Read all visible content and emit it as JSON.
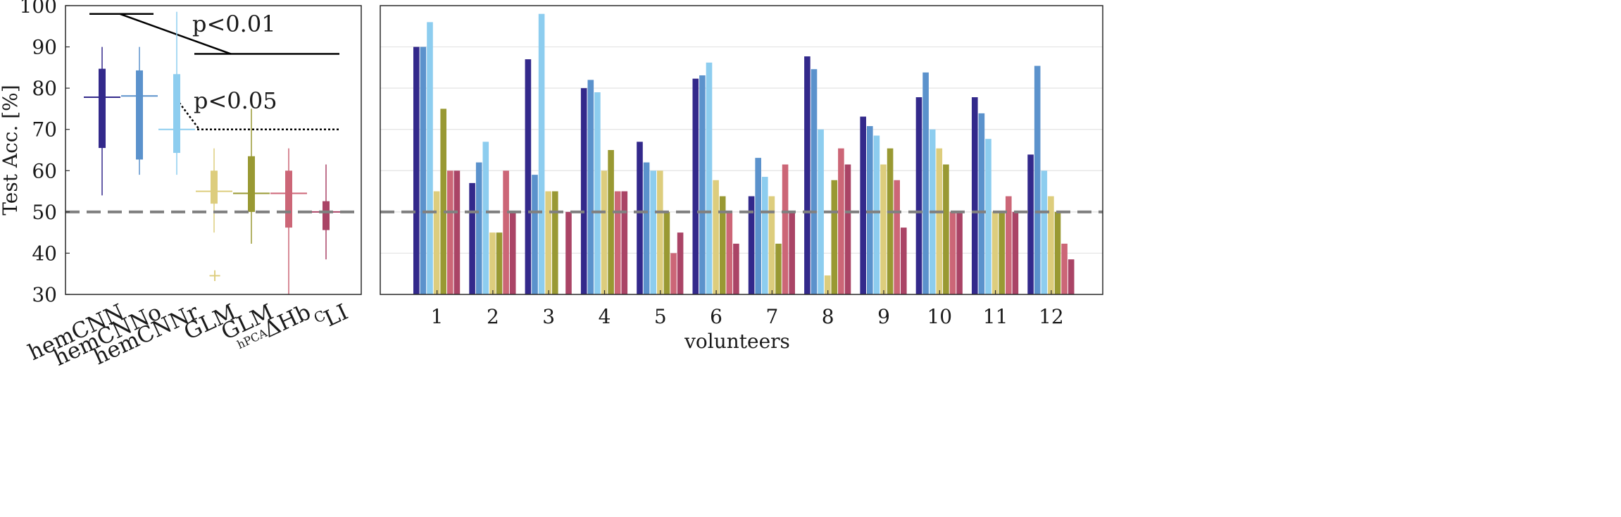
{
  "colors": {
    "hemCNN": "#33298b",
    "hemCNNo": "#5b92cc",
    "hemCNNr": "#8dcdef",
    "GLM": "#ddcd7d",
    "GLM_hPCA": "#999933",
    "dHbC": "#cc6677",
    "LI": "#aa4466"
  },
  "chart_data": [
    {
      "type": "box",
      "ylabel": "Test Acc. [%]",
      "ylim": [
        30,
        100
      ],
      "yticks": [
        30,
        40,
        50,
        60,
        70,
        80,
        90,
        100
      ],
      "chance_level": 50,
      "categories": [
        {
          "label": "hemCNN",
          "sub": ""
        },
        {
          "label": "hemCNNo",
          "sub": ""
        },
        {
          "label": "hemCNNr",
          "sub": ""
        },
        {
          "label": "GLM",
          "sub": ""
        },
        {
          "label": "GLM",
          "sub": "hPCA"
        },
        {
          "label": "ΔHb",
          "sub": "C"
        },
        {
          "label": "LI",
          "sub": ""
        }
      ],
      "boxes": [
        {
          "name": "hemCNN",
          "whisker_low": 54,
          "q1": 65.5,
          "median": 77.8,
          "q3": 84.7,
          "whisker_high": 90,
          "outliers": []
        },
        {
          "name": "hemCNNo",
          "whisker_low": 59,
          "q1": 62.7,
          "median": 78.1,
          "q3": 84.3,
          "whisker_high": 90,
          "outliers": []
        },
        {
          "name": "hemCNNr",
          "whisker_low": 59,
          "q1": 64.3,
          "median": 70,
          "q3": 83.4,
          "whisker_high": 98.5,
          "outliers": []
        },
        {
          "name": "GLM",
          "whisker_low": 45,
          "q1": 52,
          "median": 55,
          "q3": 60,
          "whisker_high": 65.4,
          "outliers": [
            34.6
          ]
        },
        {
          "name": "GLM hPCA",
          "whisker_low": 42.3,
          "q1": 50,
          "median": 54.5,
          "q3": 63.5,
          "whisker_high": 75,
          "outliers": []
        },
        {
          "name": "ΔHbC",
          "whisker_low": 30,
          "q1": 46.2,
          "median": 54.5,
          "q3": 60,
          "whisker_high": 65.4,
          "outliers": []
        },
        {
          "name": "LI",
          "whisker_low": 38.5,
          "q1": 45.6,
          "median": 50,
          "q3": 52.6,
          "whisker_high": 61.5,
          "outliers": []
        }
      ],
      "significance": [
        {
          "label": "p<0.01",
          "style": "solid"
        },
        {
          "label": "p<0.05",
          "style": "dotted"
        }
      ]
    },
    {
      "type": "bar",
      "xlabel": "volunteers",
      "ylim": [
        30,
        100
      ],
      "chance_level": 50,
      "categories": [
        "1",
        "2",
        "3",
        "4",
        "5",
        "6",
        "7",
        "8",
        "9",
        "10",
        "11",
        "12"
      ],
      "series": [
        {
          "name": "hemCNN",
          "values": [
            90,
            57,
            87,
            80,
            67,
            82.3,
            53.8,
            87.7,
            73.1,
            77.8,
            77.8,
            63.9
          ]
        },
        {
          "name": "hemCNNo",
          "values": [
            90,
            62,
            59,
            82,
            62,
            83.1,
            63.1,
            84.6,
            70.8,
            83.8,
            73.9,
            85.4
          ]
        },
        {
          "name": "hemCNNr",
          "values": [
            96,
            67,
            98,
            79,
            60,
            86.2,
            58.5,
            70,
            68.5,
            70,
            67.7,
            60
          ]
        },
        {
          "name": "GLM",
          "values": [
            55,
            45,
            55,
            60,
            60,
            57.7,
            53.8,
            34.6,
            61.5,
            65.4,
            50,
            53.8
          ]
        },
        {
          "name": "GLM hPCA",
          "values": [
            75,
            45,
            55,
            65,
            50,
            53.8,
            42.3,
            57.7,
            65.4,
            61.5,
            50,
            50
          ]
        },
        {
          "name": "ΔHbC",
          "values": [
            60,
            60,
            30,
            55,
            40,
            50,
            61.5,
            65.4,
            57.7,
            50,
            53.8,
            42.3
          ]
        },
        {
          "name": "LI",
          "values": [
            60,
            50,
            50,
            55,
            45,
            42.3,
            50,
            61.5,
            46.2,
            50,
            50,
            38.5
          ]
        }
      ]
    }
  ]
}
